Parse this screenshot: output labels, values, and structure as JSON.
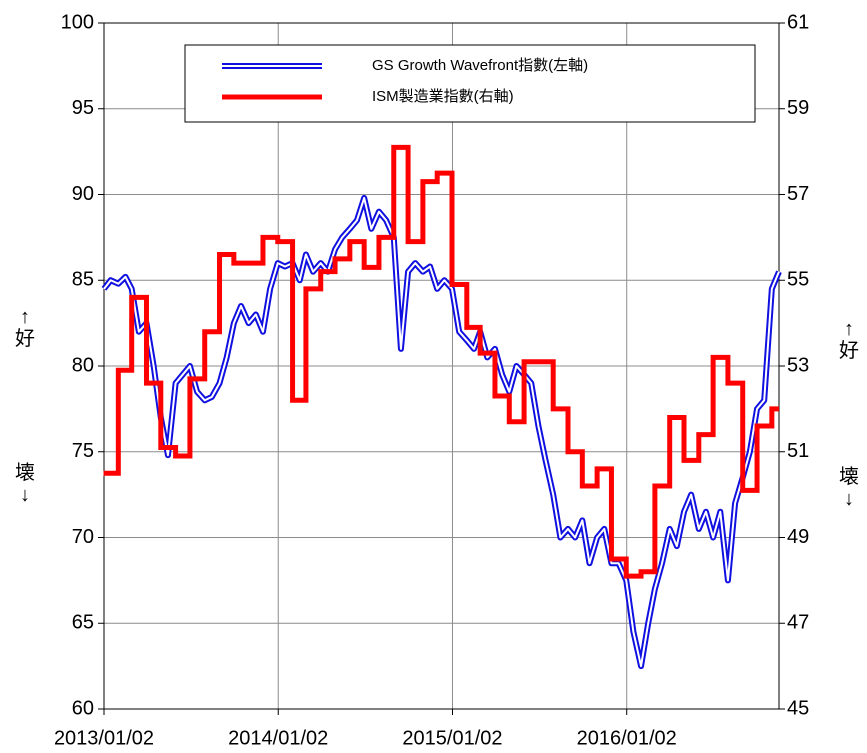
{
  "chart_data": {
    "type": "line",
    "xlim": [
      "2013/01/02",
      "2016/11/16"
    ],
    "xticks": [
      "2013/01/02",
      "2014/01/02",
      "2015/01/02",
      "2016/01/02"
    ],
    "ylim": [
      60,
      100
    ],
    "yticks": [
      60,
      65,
      70,
      75,
      80,
      85,
      90,
      95,
      100
    ],
    "y2lim": [
      45,
      61
    ],
    "y2ticks": [
      45,
      47,
      49,
      51,
      53,
      55,
      57,
      59,
      61
    ],
    "grid": true,
    "legend": "top",
    "annotations": {
      "left_up": "↑好",
      "left_down": "壊↓",
      "right_up": "↑好",
      "right_down": "壊↓"
    },
    "series": [
      {
        "name": "GS Growth Wavefront指數(左軸)",
        "color": "#1010e0",
        "style": "double",
        "x": [
          "2013/01/02",
          "2013/01/16",
          "2013/02/01",
          "2013/02/16",
          "2013/03/01",
          "2013/03/16",
          "2013/04/01",
          "2013/04/16",
          "2013/05/01",
          "2013/05/16",
          "2013/06/01",
          "2013/06/16",
          "2013/07/01",
          "2013/07/16",
          "2013/08/01",
          "2013/08/16",
          "2013/09/01",
          "2013/09/16",
          "2013/10/01",
          "2013/10/16",
          "2013/11/01",
          "2013/11/16",
          "2013/12/01",
          "2013/12/16",
          "2014/01/01",
          "2014/01/16",
          "2014/02/01",
          "2014/02/16",
          "2014/03/01",
          "2014/03/16",
          "2014/04/01",
          "2014/04/16",
          "2014/05/01",
          "2014/05/16",
          "2014/06/01",
          "2014/06/16",
          "2014/07/01",
          "2014/07/16",
          "2014/08/01",
          "2014/08/16",
          "2014/09/01",
          "2014/09/16",
          "2014/10/01",
          "2014/10/16",
          "2014/11/01",
          "2014/11/16",
          "2014/12/01",
          "2014/12/16",
          "2015/01/01",
          "2015/01/16",
          "2015/02/01",
          "2015/02/16",
          "2015/03/01",
          "2015/03/16",
          "2015/04/01",
          "2015/04/16",
          "2015/05/01",
          "2015/05/16",
          "2015/06/01",
          "2015/06/16",
          "2015/07/01",
          "2015/07/16",
          "2015/08/01",
          "2015/08/16",
          "2015/09/01",
          "2015/09/16",
          "2015/10/01",
          "2015/10/16",
          "2015/11/01",
          "2015/11/16",
          "2015/12/01",
          "2015/12/16",
          "2016/01/01",
          "2016/01/16",
          "2016/02/01",
          "2016/02/16",
          "2016/03/01",
          "2016/03/16",
          "2016/04/01",
          "2016/04/16",
          "2016/05/01",
          "2016/05/16",
          "2016/06/01",
          "2016/06/16",
          "2016/07/01",
          "2016/07/16",
          "2016/08/01",
          "2016/08/16",
          "2016/09/01",
          "2016/09/16",
          "2016/10/01",
          "2016/10/16",
          "2016/11/01",
          "2016/11/16"
        ],
        "values": [
          84.5,
          85,
          84.8,
          85.2,
          84.5,
          82,
          82.5,
          80,
          77,
          74.8,
          79,
          79.5,
          80,
          78.5,
          78,
          78.2,
          79,
          80.5,
          82.5,
          83.5,
          82.5,
          83,
          82,
          84.5,
          86,
          85.8,
          86,
          85,
          86.5,
          85.5,
          86,
          85.5,
          86.8,
          87.5,
          88,
          88.5,
          89.8,
          88,
          89,
          88.5,
          87.5,
          81,
          85.5,
          86,
          85.5,
          85.8,
          84.5,
          85,
          84.5,
          82,
          81.5,
          81,
          82,
          80.5,
          81,
          79.5,
          78.5,
          80,
          79.5,
          79,
          76.5,
          74.5,
          72.5,
          70,
          70.5,
          70,
          71,
          68.5,
          70,
          70.5,
          68.5,
          68.5,
          67.5,
          64.5,
          62.5,
          65,
          67,
          68.5,
          70.5,
          69.5,
          71.5,
          72.5,
          70.5,
          71.5,
          70,
          71.5,
          67.5,
          72,
          73.5,
          75,
          77.5,
          78,
          84.5,
          85.5
        ]
      },
      {
        "name": "ISM製造業指數(右軸)",
        "color": "#ff0000",
        "style": "step",
        "axis": "y2",
        "x": [
          "2013/01",
          "2013/02",
          "2013/03",
          "2013/04",
          "2013/05",
          "2013/06",
          "2013/07",
          "2013/08",
          "2013/09",
          "2013/10",
          "2013/11",
          "2013/12",
          "2014/01",
          "2014/02",
          "2014/03",
          "2014/04",
          "2014/05",
          "2014/06",
          "2014/07",
          "2014/08",
          "2014/09",
          "2014/10",
          "2014/11",
          "2014/12",
          "2015/01",
          "2015/02",
          "2015/03",
          "2015/04",
          "2015/05",
          "2015/06",
          "2015/07",
          "2015/08",
          "2015/09",
          "2015/10",
          "2015/11",
          "2015/12",
          "2016/01",
          "2016/02",
          "2016/03",
          "2016/04",
          "2016/05",
          "2016/06",
          "2016/07",
          "2016/08",
          "2016/09",
          "2016/10",
          "2016/11"
        ],
        "values": [
          50.5,
          52.9,
          54.6,
          52.6,
          51.1,
          50.9,
          52.7,
          53.8,
          55.6,
          55.4,
          55.4,
          56.0,
          55.9,
          52.2,
          54.8,
          55.2,
          55.5,
          55.9,
          55.3,
          56.0,
          58.1,
          55.9,
          57.3,
          57.5,
          54.9,
          53.9,
          53.3,
          52.3,
          51.7,
          53.1,
          53.1,
          52.0,
          51.0,
          50.2,
          50.6,
          48.5,
          48.1,
          48.2,
          50.2,
          51.8,
          50.8,
          51.4,
          53.2,
          52.6,
          50.1,
          51.6,
          52.0
        ]
      }
    ]
  }
}
